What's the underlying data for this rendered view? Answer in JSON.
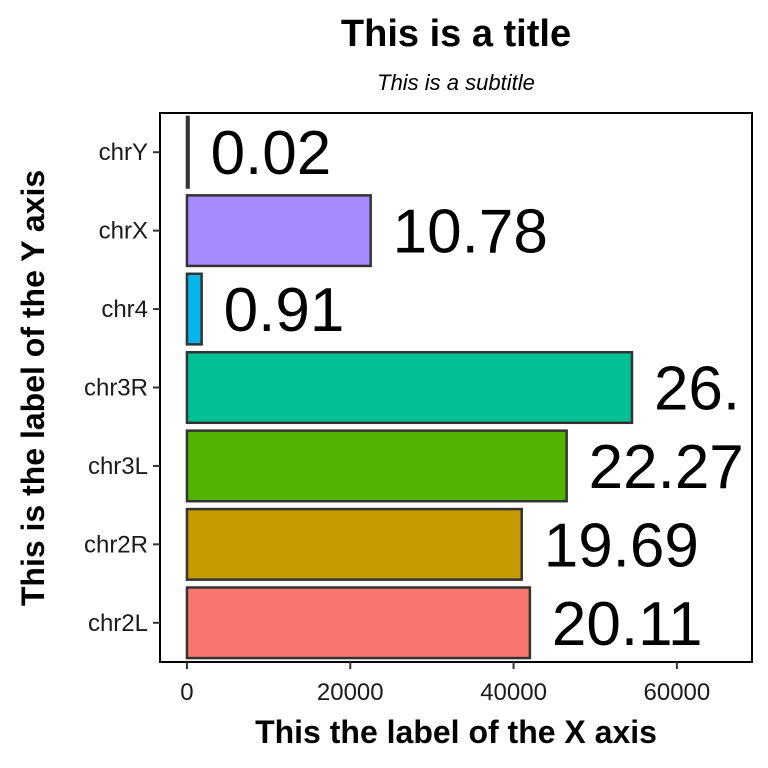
{
  "chart_data": {
    "type": "bar",
    "orientation": "horizontal",
    "title": "This is a title",
    "subtitle": "This is a subtitle",
    "xlabel": "This the label of the X axis",
    "ylabel": "This is the label of the Y axis",
    "categories": [
      "chr2L",
      "chr2R",
      "chr3L",
      "chr3R",
      "chr4",
      "chrX",
      "chrY"
    ],
    "values": [
      42000,
      41000,
      46500,
      54500,
      1800,
      22500,
      200
    ],
    "data_labels": [
      "20.11",
      "19.69",
      "22.27",
      "26.",
      "0.91",
      "10.78",
      "0.02"
    ],
    "colors": [
      "#F8766D",
      "#C49A00",
      "#53B400",
      "#00C094",
      "#00B6EB",
      "#A58AFF",
      "#FB61D7"
    ],
    "xlim": [
      -3300,
      69200
    ],
    "xticks": [
      0,
      20000,
      40000,
      60000
    ],
    "xtick_labels": [
      "0",
      "20000",
      "40000",
      "60000"
    ],
    "grid": false,
    "legend": "none"
  }
}
